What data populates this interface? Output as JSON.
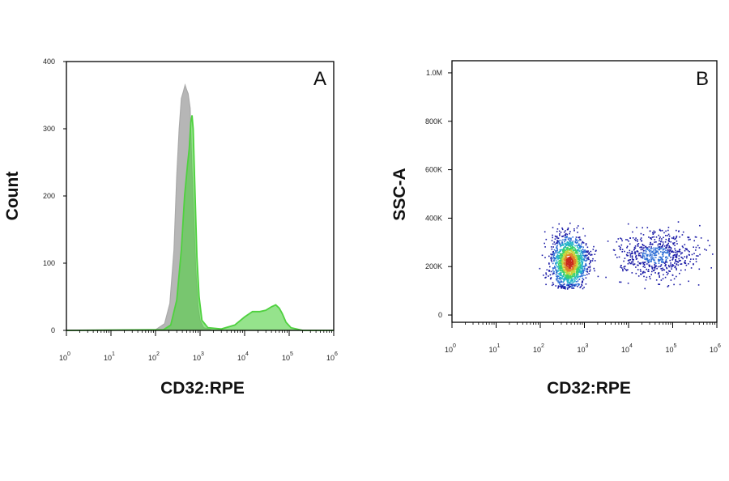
{
  "chart_data": [
    {
      "type": "area",
      "panel_label": "A",
      "xlabel": "CD32:RPE",
      "ylabel": "Count",
      "x_scale": "log",
      "xlim": [
        1,
        1000000
      ],
      "ylim": [
        0,
        400
      ],
      "y_ticks": [
        "0",
        "100",
        "200",
        "300",
        "400"
      ],
      "x_ticks": [
        {
          "base": "10",
          "exp": "0"
        },
        {
          "base": "10",
          "exp": "1"
        },
        {
          "base": "10",
          "exp": "2"
        },
        {
          "base": "10",
          "exp": "3"
        },
        {
          "base": "10",
          "exp": "4"
        },
        {
          "base": "10",
          "exp": "5"
        },
        {
          "base": "10",
          "exp": "6"
        }
      ],
      "series": [
        {
          "color": "#a9a9a9",
          "points": [
            [
              1,
              0
            ],
            [
              100,
              1
            ],
            [
              160,
              10
            ],
            [
              210,
              40
            ],
            [
              260,
              120
            ],
            [
              300,
              230
            ],
            [
              340,
              300
            ],
            [
              380,
              345
            ],
            [
              420,
              355
            ],
            [
              460,
              365
            ],
            [
              500,
              358
            ],
            [
              540,
              352
            ],
            [
              600,
              330
            ],
            [
              650,
              250
            ],
            [
              720,
              170
            ],
            [
              800,
              90
            ],
            [
              900,
              35
            ],
            [
              1000,
              15
            ],
            [
              1200,
              4
            ],
            [
              2000,
              0
            ],
            [
              1000000,
              0
            ]
          ]
        },
        {
          "color": "#4fd13f",
          "points": [
            [
              1,
              0
            ],
            [
              150,
              1
            ],
            [
              220,
              8
            ],
            [
              300,
              45
            ],
            [
              380,
              120
            ],
            [
              450,
              200
            ],
            [
              520,
              245
            ],
            [
              570,
              270
            ],
            [
              620,
              310
            ],
            [
              660,
              320
            ],
            [
              700,
              300
            ],
            [
              760,
              220
            ],
            [
              850,
              110
            ],
            [
              950,
              50
            ],
            [
              1100,
              15
            ],
            [
              1500,
              4
            ],
            [
              3000,
              2
            ],
            [
              6000,
              8
            ],
            [
              10000,
              20
            ],
            [
              15000,
              28
            ],
            [
              22000,
              28
            ],
            [
              30000,
              30
            ],
            [
              40000,
              35
            ],
            [
              50000,
              38
            ],
            [
              60000,
              33
            ],
            [
              70000,
              25
            ],
            [
              85000,
              12
            ],
            [
              110000,
              4
            ],
            [
              200000,
              0
            ],
            [
              1000000,
              0
            ]
          ]
        }
      ]
    },
    {
      "type": "scatter",
      "panel_label": "B",
      "xlabel": "CD32:RPE",
      "ylabel": "SSC-A",
      "x_scale": "log",
      "xlim": [
        1,
        1000000
      ],
      "ylim": [
        -30000,
        1050000
      ],
      "y_ticks": [
        "0",
        "200K",
        "400K",
        "600K",
        "800K",
        "1.0M"
      ],
      "x_ticks": [
        {
          "base": "10",
          "exp": "0"
        },
        {
          "base": "10",
          "exp": "1"
        },
        {
          "base": "10",
          "exp": "2"
        },
        {
          "base": "10",
          "exp": "3"
        },
        {
          "base": "10",
          "exp": "4"
        },
        {
          "base": "10",
          "exp": "5"
        },
        {
          "base": "10",
          "exp": "6"
        }
      ],
      "clusters": [
        {
          "center_log_x": 2.65,
          "center_y": 220000,
          "spread_log_x": 0.2,
          "spread_y": 55000,
          "count": 1500
        },
        {
          "center_log_x": 4.6,
          "center_y": 250000,
          "spread_log_x": 0.45,
          "spread_y": 50000,
          "count": 650
        }
      ],
      "density_colors": [
        "#1a1aa6",
        "#2f6fd6",
        "#25b3c9",
        "#3bd16b",
        "#c7d43a",
        "#e0842a",
        "#c92a1e"
      ]
    }
  ]
}
